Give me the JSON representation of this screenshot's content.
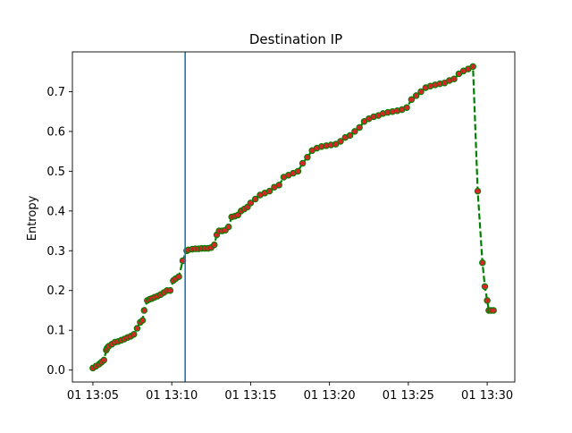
{
  "chart_data": {
    "type": "line",
    "title": "Destination IP",
    "xlabel": "",
    "ylabel": "Entropy",
    "x_unit": "minutes",
    "x_ticks": [
      {
        "value": 5,
        "label": "01 13:05"
      },
      {
        "value": 10,
        "label": "01 13:10"
      },
      {
        "value": 15,
        "label": "01 13:15"
      },
      {
        "value": 20,
        "label": "01 13:20"
      },
      {
        "value": 25,
        "label": "01 13:25"
      },
      {
        "value": 30,
        "label": "01 13:30"
      }
    ],
    "y_ticks": [
      0.0,
      0.1,
      0.2,
      0.3,
      0.4,
      0.5,
      0.6,
      0.7
    ],
    "xlim": [
      3.7,
      31.75
    ],
    "ylim": [
      -0.03,
      0.8
    ],
    "grid": false,
    "legend": "none",
    "line_color": "#008000",
    "line_style": "dashed",
    "marker_color": "#d62728",
    "vline": {
      "x": 10.85,
      "color": "#1f77b4"
    },
    "series": [
      {
        "x": [
          5.0,
          5.2,
          5.4,
          5.55,
          5.7,
          5.85,
          5.9,
          6.0,
          6.2,
          6.4,
          6.6,
          6.8,
          7.0,
          7.2,
          7.4,
          7.6,
          7.8,
          8.0,
          8.15,
          8.25,
          8.45,
          8.6,
          8.75,
          8.9,
          9.1,
          9.3,
          9.5,
          9.7,
          9.9,
          10.1,
          10.25,
          10.45,
          10.7,
          10.95,
          11.05,
          11.3,
          11.5,
          11.7,
          11.9,
          12.1,
          12.3,
          12.5,
          12.7,
          12.85,
          13.0,
          13.2,
          13.4,
          13.6,
          13.8,
          14.0,
          14.2,
          14.4,
          14.6,
          14.8,
          15.0,
          15.3,
          15.6,
          15.9,
          16.2,
          16.5,
          16.8,
          17.1,
          17.4,
          17.7,
          18.0,
          18.3,
          18.6,
          18.9,
          19.2,
          19.5,
          19.8,
          20.1,
          20.4,
          20.7,
          21.0,
          21.3,
          21.6,
          21.9,
          22.2,
          22.5,
          22.8,
          23.1,
          23.4,
          23.7,
          24.0,
          24.3,
          24.6,
          24.9,
          25.2,
          25.5,
          25.8,
          26.1,
          26.4,
          26.7,
          27.0,
          27.3,
          27.6,
          27.9,
          28.2,
          28.5,
          28.8,
          29.1,
          29.4,
          29.7,
          29.85,
          30.0,
          30.1,
          30.25,
          30.4
        ],
        "y": [
          0.005,
          0.01,
          0.015,
          0.02,
          0.025,
          0.05,
          0.055,
          0.06,
          0.065,
          0.07,
          0.072,
          0.075,
          0.078,
          0.082,
          0.085,
          0.09,
          0.105,
          0.12,
          0.125,
          0.15,
          0.175,
          0.178,
          0.18,
          0.183,
          0.186,
          0.19,
          0.195,
          0.2,
          0.2,
          0.225,
          0.23,
          0.235,
          0.275,
          0.3,
          0.302,
          0.304,
          0.305,
          0.305,
          0.306,
          0.306,
          0.306,
          0.308,
          0.315,
          0.34,
          0.35,
          0.35,
          0.352,
          0.36,
          0.385,
          0.387,
          0.39,
          0.4,
          0.405,
          0.41,
          0.42,
          0.43,
          0.44,
          0.445,
          0.45,
          0.46,
          0.465,
          0.485,
          0.49,
          0.495,
          0.5,
          0.52,
          0.535,
          0.552,
          0.558,
          0.562,
          0.564,
          0.566,
          0.568,
          0.575,
          0.585,
          0.59,
          0.6,
          0.61,
          0.625,
          0.632,
          0.637,
          0.64,
          0.645,
          0.648,
          0.65,
          0.652,
          0.655,
          0.66,
          0.68,
          0.69,
          0.7,
          0.71,
          0.714,
          0.717,
          0.72,
          0.722,
          0.728,
          0.732,
          0.745,
          0.752,
          0.757,
          0.763,
          0.45,
          0.27,
          0.21,
          0.175,
          0.15,
          0.15,
          0.15
        ]
      }
    ]
  }
}
